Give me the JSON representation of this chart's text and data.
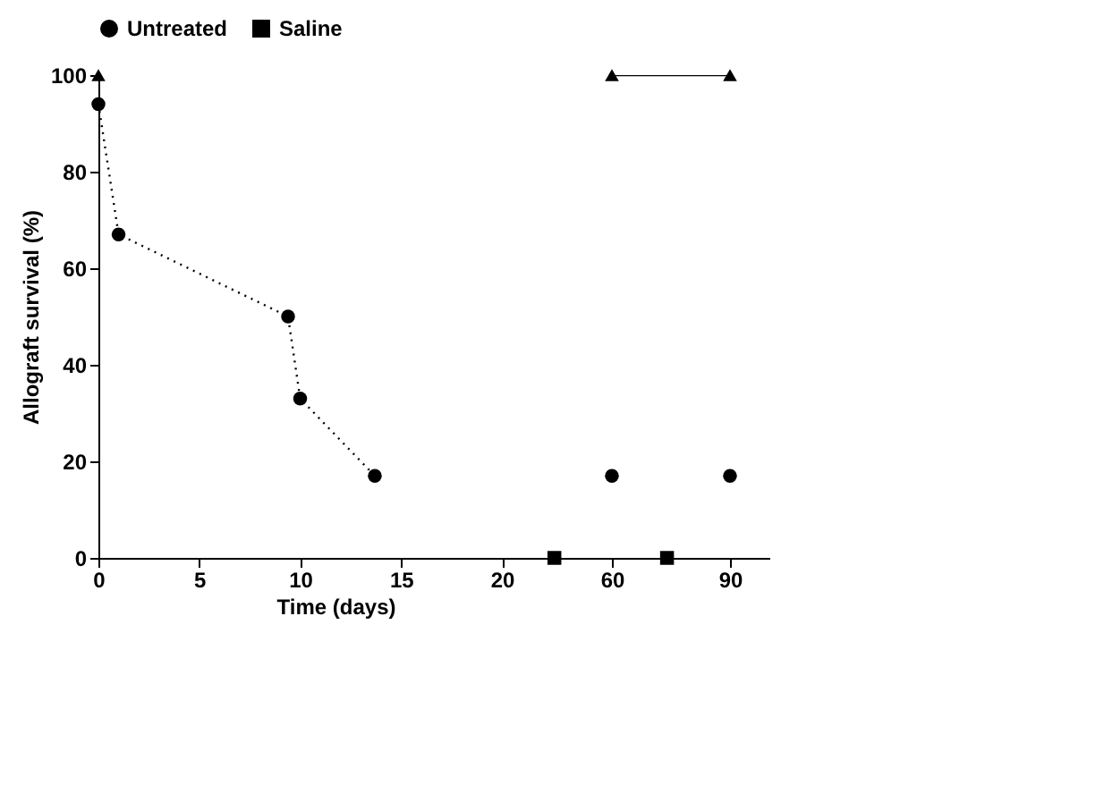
{
  "chart_data": [
    {
      "type": "line",
      "ylabel": "Allograft survival (%)",
      "xlabel": "Time (days)",
      "xlim": [
        0,
        23.5
      ],
      "xticks": [
        0,
        5,
        10,
        15,
        20
      ],
      "ylim": [
        0,
        100
      ],
      "yticks": [
        0,
        20,
        40,
        60,
        80,
        100
      ],
      "grid": false,
      "legend": "top",
      "series": [
        {
          "type": "line",
          "color": "#000000",
          "marker": "triangle",
          "line_style": "solid",
          "x": [
            0
          ],
          "values": [
            100
          ]
        },
        {
          "name": "Untreated",
          "type": "line",
          "color": "#000000",
          "marker": "circle",
          "line_style": "dotted",
          "x": [
            0,
            1,
            9.4,
            10,
            13.7
          ],
          "values": [
            94,
            67,
            50,
            33,
            17
          ]
        },
        {
          "name": "Saline",
          "type": "scatter",
          "color": "#000000",
          "marker": "square",
          "x": [
            22.6
          ],
          "values": [
            0
          ]
        }
      ]
    },
    {
      "type": "line",
      "xlim": [
        50,
        100
      ],
      "xticks": [
        60,
        90
      ],
      "ylim": [
        0,
        100
      ],
      "tick_labels": "x",
      "grid": false,
      "series": [
        {
          "type": "line",
          "color": "#000000",
          "marker": "triangle",
          "line_style": "solid",
          "x": [
            60,
            90
          ],
          "values": [
            100,
            100
          ]
        },
        {
          "name": "Untreated",
          "type": "scatter",
          "color": "#000000",
          "marker": "circle",
          "x": [
            60,
            90
          ],
          "values": [
            17,
            17
          ]
        },
        {
          "name": "Saline",
          "type": "scatter",
          "color": "#000000",
          "marker": "square",
          "x": [
            74
          ],
          "values": [
            0
          ]
        }
      ]
    }
  ]
}
